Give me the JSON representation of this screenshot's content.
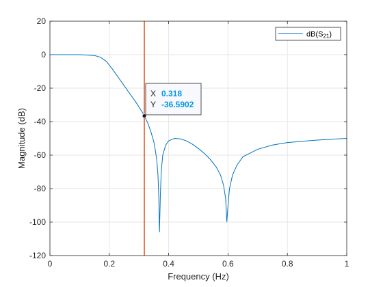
{
  "colors": {
    "series": "#0072BD",
    "marker_line": "#D95319",
    "grid": "#E6E6E6",
    "axis": "#262626",
    "datatip_value": "#0096E6",
    "datatip_bg": "#F8F8FF"
  },
  "chart_data": {
    "type": "line",
    "xlabel": "Frequency (Hz)",
    "ylabel": "Magnitude (dB)",
    "xlim": [
      0,
      1
    ],
    "ylim": [
      -120,
      20
    ],
    "xticks": [
      0,
      0.2,
      0.4,
      0.6,
      0.8,
      1
    ],
    "xtick_labels": [
      "0",
      "0.2",
      "0.4",
      "0.6",
      "0.8",
      "1"
    ],
    "yticks": [
      20,
      0,
      -20,
      -40,
      -60,
      -80,
      -100,
      -120
    ],
    "ytick_labels": [
      "20",
      "0",
      "-20",
      "-40",
      "-60",
      "-80",
      "-100",
      "-120"
    ],
    "grid": true,
    "legend": {
      "placement": "top-right",
      "label_main": "dB(S",
      "label_sub": "21",
      "label_end": ")"
    },
    "series": [
      {
        "name": "dB(S21)",
        "x": [
          0,
          0.1,
          0.15,
          0.17,
          0.19,
          0.21,
          0.23,
          0.25,
          0.27,
          0.29,
          0.31,
          0.318,
          0.33,
          0.34,
          0.35,
          0.355,
          0.36,
          0.364,
          0.367,
          0.369,
          0.372,
          0.375,
          0.38,
          0.39,
          0.4,
          0.42,
          0.44,
          0.46,
          0.48,
          0.5,
          0.52,
          0.54,
          0.56,
          0.575,
          0.585,
          0.592,
          0.596,
          0.6,
          0.605,
          0.615,
          0.63,
          0.65,
          0.7,
          0.75,
          0.8,
          0.9,
          1
        ],
        "y": [
          0,
          0,
          -0.5,
          -1.5,
          -4,
          -8.5,
          -13.5,
          -18.5,
          -23.5,
          -28.5,
          -34,
          -36.5902,
          -41,
          -46,
          -52,
          -57,
          -63,
          -72,
          -86,
          -106,
          -84,
          -70,
          -60,
          -54,
          -51.5,
          -50,
          -50.3,
          -51.5,
          -53.5,
          -56,
          -59,
          -62.5,
          -67,
          -72,
          -78,
          -86,
          -100,
          -90,
          -80,
          -72,
          -66,
          -61,
          -56.5,
          -54,
          -52.5,
          -51,
          -50
        ]
      }
    ],
    "vertical_line": {
      "x": 0.318
    },
    "datatip": {
      "x": 0.318,
      "y": -36.5902,
      "x_key": "X",
      "x_value": "0.318",
      "y_key": "Y",
      "y_value": "-36.5902"
    }
  }
}
